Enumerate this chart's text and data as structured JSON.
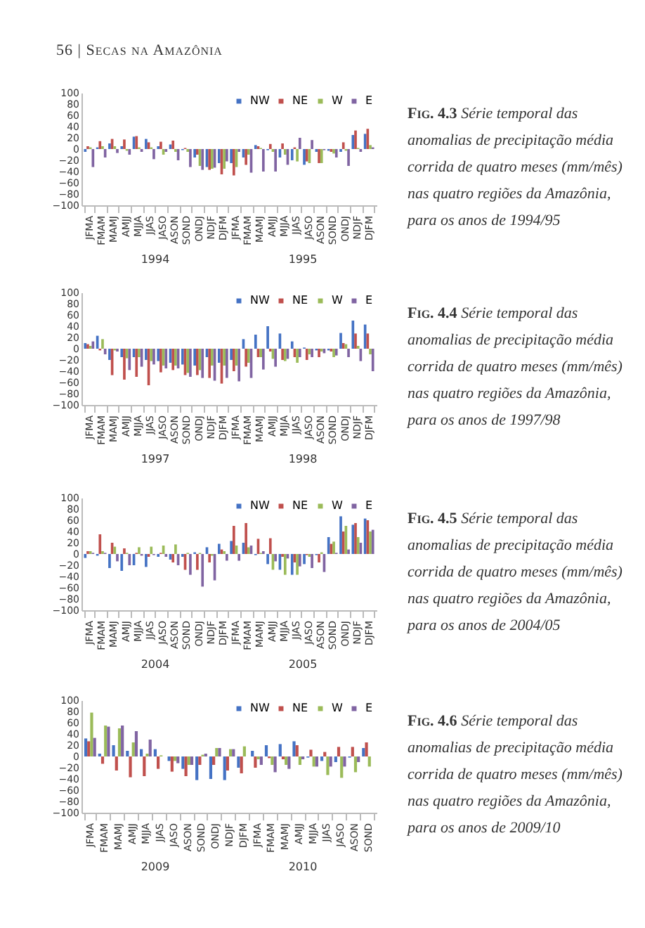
{
  "chart_data": [
    {
      "type": "other",
      "title": "56 | Secas na Amazônia"
    },
    {
      "type": "bar",
      "categories": [
        "JFMA",
        "FMAM",
        "MAMJ",
        "AMJJ",
        "MJJA",
        "JJAS",
        "JASO",
        "ASON",
        "SOND",
        "ONDJ",
        "NDJF",
        "DJFM",
        "JFMA",
        "FMAM",
        "MAMJ",
        "AMJJ",
        "MJJA",
        "JJAS",
        "JASO",
        "ASON",
        "SOND",
        "ONDJ",
        "NDJF",
        "DJFM"
      ],
      "ylim": [
        -100,
        100
      ],
      "yticks": [
        -100,
        -80,
        -60,
        -40,
        -20,
        0,
        20,
        40,
        60,
        80,
        100
      ],
      "legend": "top right",
      "annotations": [
        "1994",
        "1995",
        "Fig. 4.3",
        "Série temporal das anomalias de precipitação média corrida de quatro meses (mm/mês) nas quatro regiões da Amazônia, para os anos de 1994/95"
      ],
      "series": [
        {
          "name": "NW",
          "color": "#4472c4",
          "values": [
            -5,
            3,
            10,
            5,
            22,
            18,
            5,
            8,
            -2,
            -15,
            -32,
            -25,
            -25,
            -15,
            7,
            -2,
            -15,
            -20,
            -28,
            -5,
            -3,
            -5,
            25,
            27
          ]
        },
        {
          "name": "NE",
          "color": "#c0504d",
          "values": [
            5,
            14,
            18,
            17,
            23,
            12,
            13,
            15,
            2,
            -10,
            -37,
            -45,
            -47,
            -28,
            5,
            9,
            10,
            3,
            -22,
            -25,
            -5,
            12,
            33,
            36
          ]
        },
        {
          "name": "W",
          "color": "#9bbb59",
          "values": [
            3,
            5,
            5,
            -3,
            3,
            3,
            -10,
            -5,
            -5,
            -30,
            -35,
            -35,
            -32,
            -10,
            2,
            -5,
            -10,
            -22,
            -25,
            -25,
            -8,
            -3,
            2,
            7
          ]
        },
        {
          "name": "E",
          "color": "#8064a2",
          "values": [
            -32,
            -15,
            -7,
            -10,
            -5,
            -18,
            -5,
            -20,
            -32,
            -37,
            -33,
            -22,
            -5,
            -42,
            -40,
            -40,
            -28,
            20,
            16,
            -2,
            -15,
            -30,
            -5,
            3
          ]
        }
      ]
    },
    {
      "type": "bar",
      "categories": [
        "JFMA",
        "FMAM",
        "MAMJ",
        "AMJJ",
        "MJJA",
        "JJAS",
        "JASO",
        "ASON",
        "SOND",
        "ONDJ",
        "NDJF",
        "DJFM",
        "JFMA",
        "FMAM",
        "MAMJ",
        "AMJJ",
        "MJJA",
        "JJAS",
        "JASO",
        "ASON",
        "SOND",
        "ONDJ",
        "NDJF",
        "DJFM"
      ],
      "ylim": [
        -100,
        100
      ],
      "yticks": [
        -100,
        -80,
        -60,
        -40,
        -20,
        0,
        20,
        40,
        60,
        80,
        100
      ],
      "legend": "top right",
      "annotations": [
        "1997",
        "1998",
        "Fig. 4.4",
        "Série temporal das anomalias de precipitação média corrida de quatro meses (mm/mês) nas quatro regiões da Amazônia, para os anos de 1997/98"
      ],
      "series": [
        {
          "name": "NW",
          "color": "#4472c4",
          "values": [
            10,
            23,
            -20,
            -15,
            -15,
            -20,
            -22,
            -25,
            -28,
            -30,
            -15,
            -25,
            -20,
            17,
            25,
            40,
            27,
            13,
            2,
            -3,
            -3,
            28,
            50,
            43
          ]
        },
        {
          "name": "NE",
          "color": "#c0504d",
          "values": [
            8,
            -3,
            -47,
            -55,
            -50,
            -65,
            -42,
            -38,
            -47,
            -47,
            -52,
            -62,
            -40,
            -32,
            -15,
            -5,
            -20,
            -15,
            -20,
            -15,
            -5,
            10,
            27,
            27
          ]
        },
        {
          "name": "W",
          "color": "#9bbb59",
          "values": [
            5,
            17,
            -3,
            -17,
            -15,
            -22,
            -30,
            -30,
            -43,
            -38,
            -30,
            -30,
            -30,
            -25,
            -15,
            -18,
            -22,
            -25,
            -10,
            -5,
            -15,
            8,
            5,
            -10
          ]
        },
        {
          "name": "E",
          "color": "#8064a2",
          "values": [
            13,
            -10,
            -5,
            -38,
            -32,
            -28,
            -35,
            -35,
            -50,
            -52,
            -57,
            -52,
            -58,
            -52,
            -37,
            -32,
            -18,
            -15,
            -15,
            -8,
            -12,
            -15,
            -22,
            -40
          ]
        }
      ]
    },
    {
      "type": "bar",
      "categories": [
        "JFMA",
        "FMAM",
        "MAMJ",
        "AMJJ",
        "MJJA",
        "JJAS",
        "JASO",
        "ASON",
        "SOND",
        "ONDJ",
        "NDJF",
        "DJFM",
        "JFMA",
        "FMAM",
        "MAMJ",
        "AMJJ",
        "MJJA",
        "JJAS",
        "JASO",
        "ASON",
        "SOND",
        "ONDJ",
        "NDJF",
        "DJFM"
      ],
      "ylim": [
        -100,
        100
      ],
      "yticks": [
        -100,
        -80,
        -60,
        -40,
        -20,
        0,
        20,
        40,
        60,
        80,
        100
      ],
      "legend": "top right",
      "annotations": [
        "2004",
        "2005",
        "Fig. 4.5",
        "Série temporal das anomalias de precipitação média corrida de quatro meses (mm/mês) nas quatro regiões da Amazônia, para os anos de 2004/05"
      ],
      "series": [
        {
          "name": "NW",
          "color": "#4472c4",
          "values": [
            -7,
            -3,
            -25,
            -30,
            -20,
            -23,
            -5,
            -10,
            -5,
            3,
            12,
            18,
            23,
            20,
            -2,
            -18,
            -28,
            -37,
            -18,
            -2,
            30,
            67,
            52,
            63
          ]
        },
        {
          "name": "NE",
          "color": "#c0504d",
          "values": [
            5,
            35,
            20,
            10,
            2,
            -5,
            2,
            -15,
            -28,
            -28,
            -15,
            8,
            50,
            55,
            27,
            28,
            -5,
            -15,
            -2,
            -15,
            18,
            40,
            55,
            60
          ]
        },
        {
          "name": "W",
          "color": "#9bbb59",
          "values": [
            5,
            5,
            13,
            2,
            12,
            13,
            15,
            17,
            2,
            2,
            -3,
            5,
            15,
            12,
            2,
            -28,
            -37,
            -37,
            -5,
            3,
            22,
            50,
            30,
            40
          ]
        },
        {
          "name": "E",
          "color": "#8064a2",
          "values": [
            2,
            2,
            -13,
            -20,
            -3,
            -2,
            -5,
            -20,
            -37,
            -58,
            -47,
            -12,
            -12,
            15,
            5,
            -13,
            -8,
            -22,
            -25,
            -32,
            2,
            8,
            20,
            43
          ]
        }
      ]
    },
    {
      "type": "bar",
      "categories": [
        "JFMA",
        "FMAM",
        "MAMJ",
        "AMJJ",
        "MJJA",
        "JJAS",
        "JASO",
        "ASON",
        "SOND",
        "ONDJ",
        "NDJF",
        "DJFM",
        "JFMA",
        "FMAM",
        "MAMJ",
        "AMJJ",
        "MJJA",
        "JJAS",
        "JASO",
        "ASON",
        "SOND"
      ],
      "ylim": [
        -100,
        100
      ],
      "yticks": [
        -100,
        -80,
        -60,
        -40,
        -20,
        0,
        20,
        40,
        60,
        80,
        100
      ],
      "legend": "top right",
      "annotations": [
        "2009",
        "2010",
        "Fig. 4.6",
        "Série temporal das anomalias de precipitação média corrida de quatro meses (mm/mês) nas quatro regiões da Amazônia, para os anos de 2009/10"
      ],
      "series": [
        {
          "name": "NW",
          "color": "#4472c4",
          "values": [
            32,
            5,
            20,
            10,
            13,
            13,
            -8,
            -22,
            -42,
            -40,
            -42,
            -20,
            10,
            20,
            22,
            27,
            -2,
            -8,
            -10,
            -2,
            15
          ]
        },
        {
          "name": "NE",
          "color": "#c0504d",
          "values": [
            27,
            -13,
            -25,
            -37,
            -35,
            -22,
            -27,
            -35,
            -15,
            -15,
            -25,
            -30,
            -20,
            -3,
            -5,
            20,
            12,
            8,
            17,
            17,
            25
          ]
        },
        {
          "name": "W",
          "color": "#9bbb59",
          "values": [
            78,
            55,
            50,
            25,
            5,
            2,
            -8,
            -15,
            3,
            15,
            13,
            18,
            -5,
            -15,
            -15,
            -15,
            -18,
            -33,
            -38,
            -28,
            -18
          ]
        },
        {
          "name": "E",
          "color": "#8064a2",
          "values": [
            33,
            53,
            55,
            45,
            30,
            0,
            -12,
            -15,
            5,
            15,
            13,
            0,
            -15,
            -28,
            -22,
            -5,
            -18,
            -18,
            -18,
            -10,
            0
          ]
        }
      ]
    }
  ]
}
